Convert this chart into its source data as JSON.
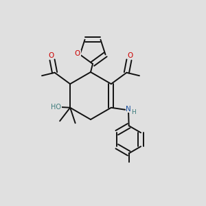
{
  "bg_color": "#e0e0e0",
  "bond_color": "#111111",
  "bond_width": 1.4,
  "dbo": 0.012,
  "figsize": [
    3.0,
    3.0
  ],
  "dpi": 100,
  "xlim": [
    0,
    1
  ],
  "ylim": [
    0,
    1
  ]
}
